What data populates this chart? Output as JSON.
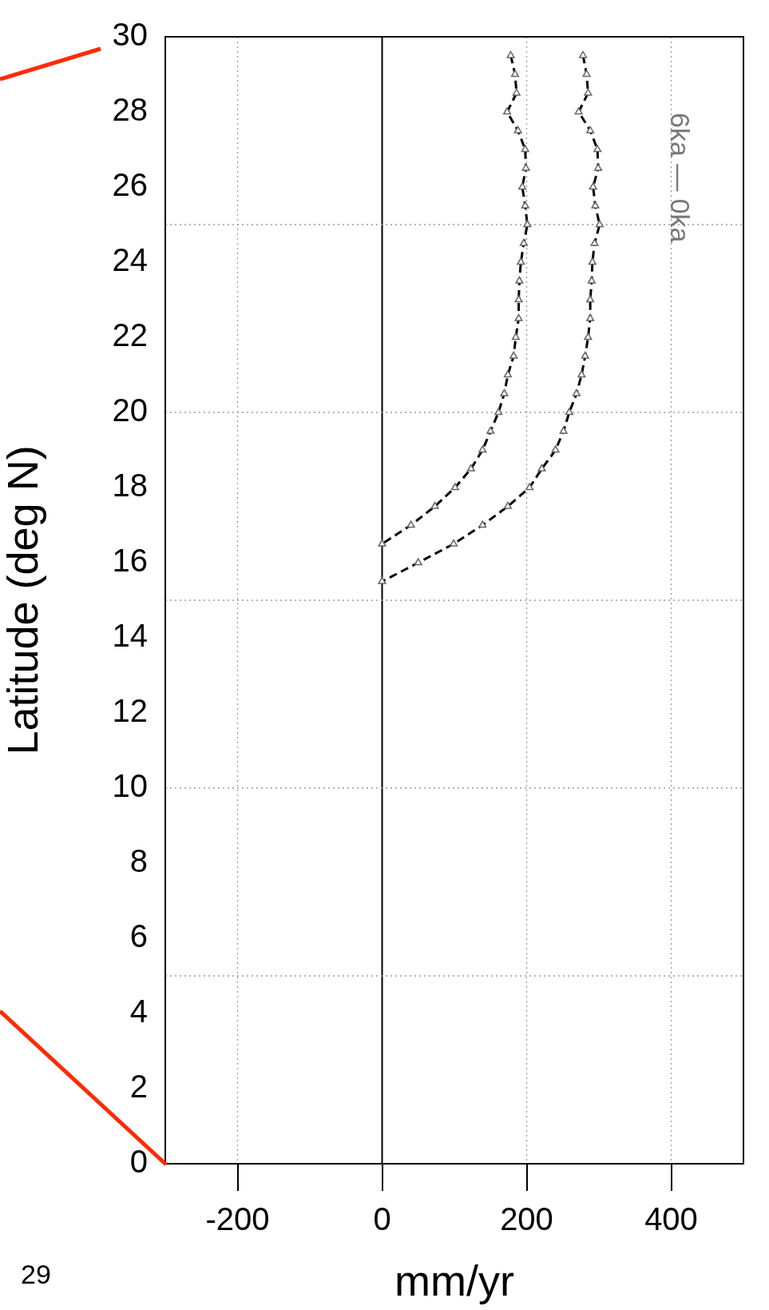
{
  "chart_data": {
    "type": "line",
    "xlabel": "mm/yr",
    "ylabel": "Latitude (deg N)",
    "annotations": [
      "6ka — 0ka",
      "29"
    ],
    "series": [
      {
        "color": "#000000",
        "x": [
          178,
          184,
          186,
          173,
          188,
          198,
          199,
          194,
          198,
          201,
          196,
          192,
          190,
          189,
          189,
          185,
          182,
          174,
          169,
          161,
          150,
          139,
          123,
          101,
          73,
          40,
          0
        ],
        "values": [
          29.5,
          29,
          28.5,
          28,
          27.5,
          27,
          26.5,
          26,
          25.5,
          25,
          24.5,
          24,
          23.5,
          23,
          22.5,
          22,
          21.5,
          21,
          20.5,
          20,
          19.5,
          19,
          18.5,
          18,
          17.5,
          17,
          16.5
        ]
      },
      {
        "color": "#000000",
        "x": [
          278,
          283,
          285,
          272,
          288,
          298,
          299,
          292,
          295,
          301,
          294,
          291,
          290,
          288,
          288,
          285,
          281,
          276,
          269,
          259,
          251,
          240,
          221,
          204,
          174,
          139,
          99,
          50,
          0
        ],
        "values": [
          29.5,
          29,
          28.5,
          28,
          27.5,
          27,
          26.5,
          26,
          25.5,
          25,
          24.5,
          24,
          23.5,
          23,
          22.5,
          22,
          21.5,
          21,
          20.5,
          20,
          19.5,
          19,
          18.5,
          18,
          17.5,
          17,
          16.5,
          16,
          15.5
        ]
      }
    ],
    "xlim": [
      -300,
      500
    ],
    "xticks": [
      -200,
      0,
      200,
      400
    ],
    "ylim": [
      0,
      30
    ],
    "yticks": [
      0,
      2,
      4,
      6,
      8,
      10,
      12,
      14,
      16,
      18,
      20,
      22,
      24,
      26,
      28,
      30
    ],
    "ref_lines": [
      {
        "axis": "x",
        "value": 0,
        "color": "#000000",
        "line_style": "solid"
      },
      {
        "axis": "x",
        "value": -200,
        "color": "#999999",
        "line_style": "dotted"
      },
      {
        "axis": "x",
        "value": 200,
        "color": "#999999",
        "line_style": "dotted"
      },
      {
        "axis": "x",
        "value": 400,
        "color": "#999999",
        "line_style": "dotted"
      },
      {
        "axis": "y",
        "value": 5,
        "color": "#999999",
        "line_style": "dotted"
      },
      {
        "axis": "y",
        "value": 10,
        "color": "#999999",
        "line_style": "dotted"
      },
      {
        "axis": "y",
        "value": 15,
        "color": "#999999",
        "line_style": "dotted"
      },
      {
        "axis": "y",
        "value": 20,
        "color": "#999999",
        "line_style": "dotted"
      },
      {
        "axis": "y",
        "value": 25,
        "color": "#999999",
        "line_style": "dotted"
      }
    ],
    "grid": false,
    "legend": false,
    "marker": "triangle",
    "line_style": "dashed"
  }
}
